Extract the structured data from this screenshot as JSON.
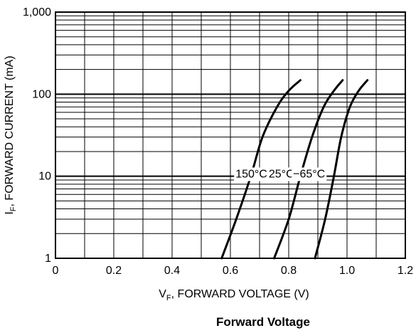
{
  "chart_data": {
    "type": "line",
    "title": "Forward Voltage",
    "xlabel": {
      "main": "V",
      "sub": "F",
      "rest": ", FORWARD VOLTAGE (V)"
    },
    "ylabel": {
      "main": "I",
      "sub": "F",
      "rest": ", FORWARD CURRENT (mA)"
    },
    "xlim": [
      0,
      1.2
    ],
    "ylim": [
      1,
      1000
    ],
    "y_scale": "log",
    "grid": true,
    "x_ticks": [
      {
        "value": 0,
        "label": "0"
      },
      {
        "value": 0.2,
        "label": "0.2"
      },
      {
        "value": 0.4,
        "label": "0.4"
      },
      {
        "value": 0.6,
        "label": "0.6"
      },
      {
        "value": 0.8,
        "label": "0.8"
      },
      {
        "value": 1.0,
        "label": "1.0"
      },
      {
        "value": 1.2,
        "label": "1.2"
      }
    ],
    "y_ticks": [
      {
        "value": 1,
        "label": "1"
      },
      {
        "value": 10,
        "label": "10"
      },
      {
        "value": 100,
        "label": "100"
      },
      {
        "value": 1000,
        "label": "1,000"
      }
    ],
    "series": [
      {
        "name": "150°C",
        "label_at": [
          0.672,
          10.5
        ],
        "points": [
          [
            0.57,
            1
          ],
          [
            0.62,
            3
          ],
          [
            0.67,
            10
          ],
          [
            0.71,
            30
          ],
          [
            0.76,
            70
          ],
          [
            0.8,
            110
          ],
          [
            0.84,
            148
          ]
        ]
      },
      {
        "name": "25°C",
        "label_at": [
          0.775,
          10.5
        ],
        "points": [
          [
            0.75,
            1
          ],
          [
            0.8,
            3
          ],
          [
            0.84,
            10
          ],
          [
            0.88,
            30
          ],
          [
            0.92,
            70
          ],
          [
            0.955,
            110
          ],
          [
            0.985,
            148
          ]
        ]
      },
      {
        "name": "−65°C",
        "label_at": [
          0.87,
          10.5
        ],
        "points": [
          [
            0.89,
            1
          ],
          [
            0.925,
            3
          ],
          [
            0.955,
            10
          ],
          [
            0.98,
            30
          ],
          [
            1.01,
            70
          ],
          [
            1.04,
            110
          ],
          [
            1.07,
            148
          ]
        ]
      }
    ],
    "colors": {
      "line": "#000000",
      "grid": "#000000",
      "label_bg": "#ffffff"
    }
  }
}
